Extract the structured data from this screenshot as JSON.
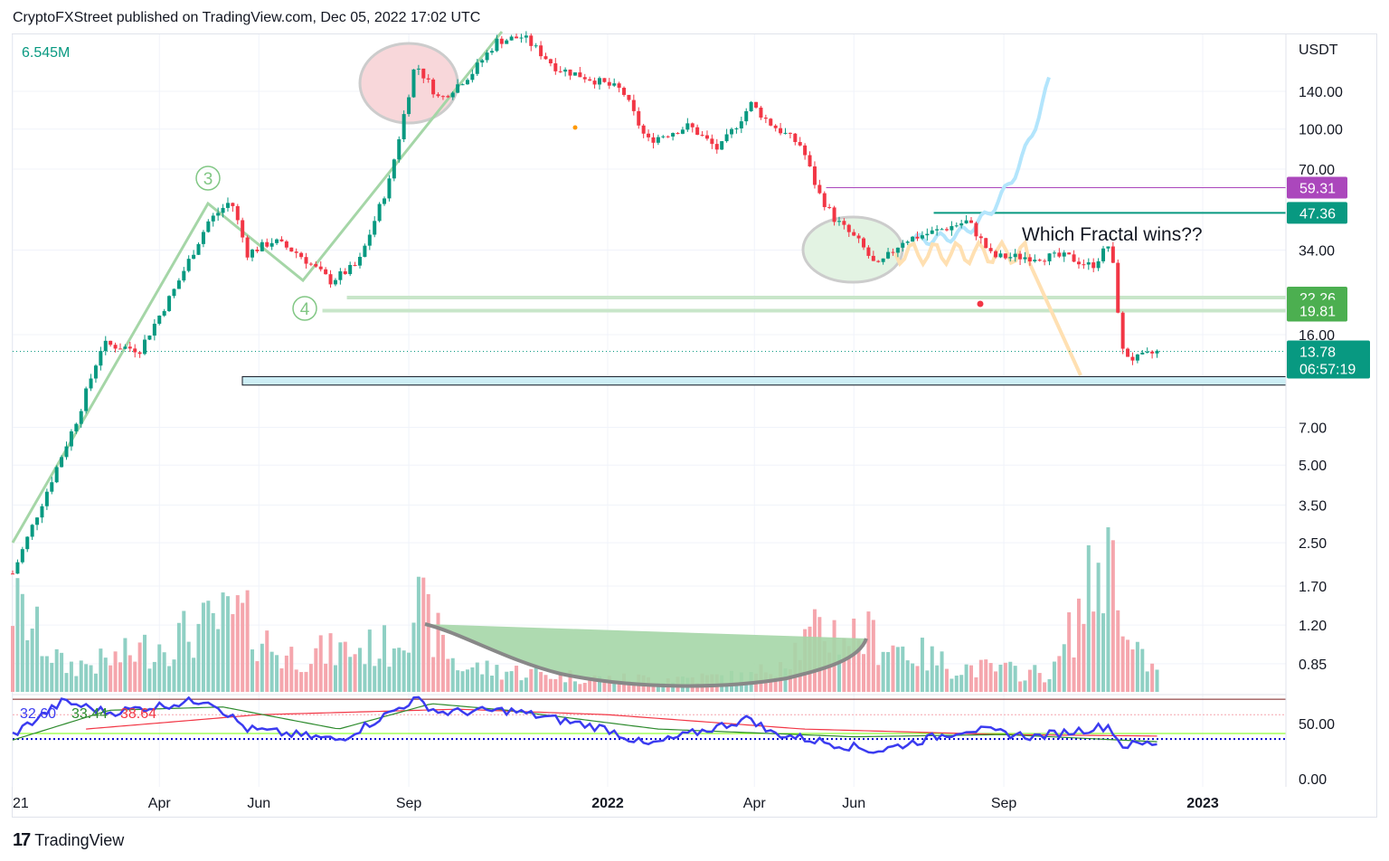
{
  "header": {
    "text": "CryptoFXStreet published on TradingView.com, Dec 05, 2022 17:02 UTC"
  },
  "footer": {
    "brand": "TradingView",
    "logo_icon": "tradingview-logo-icon"
  },
  "colors": {
    "up": "#089981",
    "down": "#f23645",
    "vol_up": "#8fd0c4",
    "vol_down": "#f5a6ad",
    "purple": "#ab47bc",
    "green": "#4caf50",
    "teal": "#089981",
    "rsi": "#3b3bf0",
    "rsi_ma": "#2e8b2e",
    "rsi_slow": "#f23645"
  },
  "chart_data": {
    "type": "candlestick",
    "title": "",
    "currency": "USDT",
    "volume_label": "6.545M",
    "y_scale": "log",
    "y_ticks": [
      "140.00",
      "100.00",
      "70.00",
      "34.00",
      "16.00",
      "7.00",
      "5.00",
      "3.50",
      "2.50",
      "1.70",
      "1.20",
      "0.85"
    ],
    "x_ticks": [
      {
        "label": "21",
        "date": "2021-01-01"
      },
      {
        "label": "Apr",
        "date": "2021-04-01"
      },
      {
        "label": "Jun",
        "date": "2021-06-01"
      },
      {
        "label": "Sep",
        "date": "2021-09-01"
      },
      {
        "label": "2022",
        "date": "2022-01-01"
      },
      {
        "label": "Apr",
        "date": "2022-04-01"
      },
      {
        "label": "Jun",
        "date": "2022-06-01"
      },
      {
        "label": "Sep",
        "date": "2022-09-01"
      },
      {
        "label": "2023",
        "date": "2023-01-01"
      }
    ],
    "price_path": [
      [
        "2021-01-01",
        1.9
      ],
      [
        "2021-01-20",
        3.7
      ],
      [
        "2021-02-10",
        7.7
      ],
      [
        "2021-02-25",
        14.7
      ],
      [
        "2021-03-20",
        14
      ],
      [
        "2021-04-10",
        23.8
      ],
      [
        "2021-05-01",
        43.8
      ],
      [
        "2021-05-15",
        53
      ],
      [
        "2021-05-25",
        33
      ],
      [
        "2021-06-10",
        37
      ],
      [
        "2021-06-25",
        33
      ],
      [
        "2021-07-15",
        25.8
      ],
      [
        "2021-08-01",
        30
      ],
      [
        "2021-08-20",
        62.8
      ],
      [
        "2021-09-05",
        180
      ],
      [
        "2021-09-20",
        130
      ],
      [
        "2021-10-10",
        166
      ],
      [
        "2021-10-25",
        219
      ],
      [
        "2021-11-10",
        228
      ],
      [
        "2021-12-01",
        172
      ],
      [
        "2021-12-20",
        158
      ],
      [
        "2022-01-10",
        141
      ],
      [
        "2022-01-25",
        90
      ],
      [
        "2022-02-20",
        103
      ],
      [
        "2022-03-10",
        83
      ],
      [
        "2022-03-30",
        125
      ],
      [
        "2022-04-10",
        106
      ],
      [
        "2022-04-30",
        86
      ],
      [
        "2022-05-10",
        57
      ],
      [
        "2022-05-20",
        45
      ],
      [
        "2022-06-05",
        36
      ],
      [
        "2022-06-15",
        29
      ],
      [
        "2022-07-01",
        37
      ],
      [
        "2022-07-20",
        40
      ],
      [
        "2022-08-10",
        44
      ],
      [
        "2022-08-25",
        32
      ],
      [
        "2022-09-20",
        32
      ],
      [
        "2022-10-10",
        32
      ],
      [
        "2022-10-25",
        29.4
      ],
      [
        "2022-11-05",
        36
      ],
      [
        "2022-11-09",
        24
      ],
      [
        "2022-11-12",
        13.9
      ],
      [
        "2022-11-20",
        12.8
      ],
      [
        "2022-12-05",
        13.78
      ]
    ],
    "volume_path_M": [
      [
        "2021-01-01",
        3.5
      ],
      [
        "2021-02-01",
        1.0
      ],
      [
        "2021-03-01",
        1.2
      ],
      [
        "2021-05-20",
        3.0
      ],
      [
        "2021-06-15",
        1.4
      ],
      [
        "2021-08-20",
        1.8
      ],
      [
        "2021-09-05",
        3.5
      ],
      [
        "2021-10-01",
        1.0
      ],
      [
        "2022-01-01",
        0.5
      ],
      [
        "2022-04-01",
        0.6
      ],
      [
        "2022-05-12",
        2.4
      ],
      [
        "2022-06-10",
        2.2
      ],
      [
        "2022-08-01",
        1.0
      ],
      [
        "2022-10-01",
        0.7
      ],
      [
        "2022-11-09",
        6.5
      ],
      [
        "2022-11-15",
        1.8
      ],
      [
        "2022-12-05",
        0.7
      ]
    ],
    "price_labels": [
      {
        "value": "59.31",
        "price": 59.31,
        "color": "#ab47bc",
        "from": "2022-05-15"
      },
      {
        "value": "47.36",
        "price": 47.36,
        "color": "#089981",
        "from": "2022-07-20"
      },
      {
        "value": "22.26",
        "price": 22.26,
        "color": "#4caf50",
        "from": "2021-07-25"
      },
      {
        "value": "19.81",
        "price": 19.81,
        "color": "#4caf50",
        "from": "2021-07-10"
      }
    ],
    "last_price": {
      "value": "13.78",
      "countdown": "06:57:19",
      "price": 13.78
    },
    "annotations": {
      "text": "Which Fractal wins??",
      "wave3": "3",
      "wave4": "4",
      "support_zone": [
        10.2,
        11
      ]
    },
    "indicator": {
      "values": [
        "32.60",
        "33.44",
        "38.64"
      ],
      "ticks": [
        "50.00",
        "0.00"
      ],
      "levels": [
        72,
        58,
        41,
        36
      ],
      "rsi": [
        [
          "2021-01-01",
          40
        ],
        [
          "2021-02-01",
          70
        ],
        [
          "2021-03-01",
          60
        ],
        [
          "2021-05-01",
          72
        ],
        [
          "2021-05-25",
          45
        ],
        [
          "2021-07-20",
          35
        ],
        [
          "2021-09-05",
          72
        ],
        [
          "2021-09-20",
          60
        ],
        [
          "2021-11-01",
          62
        ],
        [
          "2022-01-01",
          45
        ],
        [
          "2022-01-25",
          30
        ],
        [
          "2022-03-30",
          55
        ],
        [
          "2022-04-10",
          42
        ],
        [
          "2022-06-15",
          25
        ],
        [
          "2022-08-10",
          45
        ],
        [
          "2022-09-20",
          38
        ],
        [
          "2022-11-05",
          48
        ],
        [
          "2022-11-12",
          30
        ],
        [
          "2022-12-05",
          32.6
        ]
      ],
      "ma": [
        [
          "2021-01-01",
          35
        ],
        [
          "2021-03-01",
          62
        ],
        [
          "2021-05-10",
          65
        ],
        [
          "2021-07-20",
          45
        ],
        [
          "2021-09-15",
          68
        ],
        [
          "2021-11-01",
          62
        ],
        [
          "2022-02-01",
          45
        ],
        [
          "2022-06-01",
          38
        ],
        [
          "2022-09-01",
          40
        ],
        [
          "2022-12-05",
          33.44
        ]
      ],
      "slow": [
        [
          "2021-02-15",
          45
        ],
        [
          "2021-06-01",
          58
        ],
        [
          "2021-10-01",
          63
        ],
        [
          "2022-01-01",
          58
        ],
        [
          "2022-05-01",
          45
        ],
        [
          "2022-09-01",
          40
        ],
        [
          "2022-12-05",
          38.64
        ]
      ]
    }
  }
}
